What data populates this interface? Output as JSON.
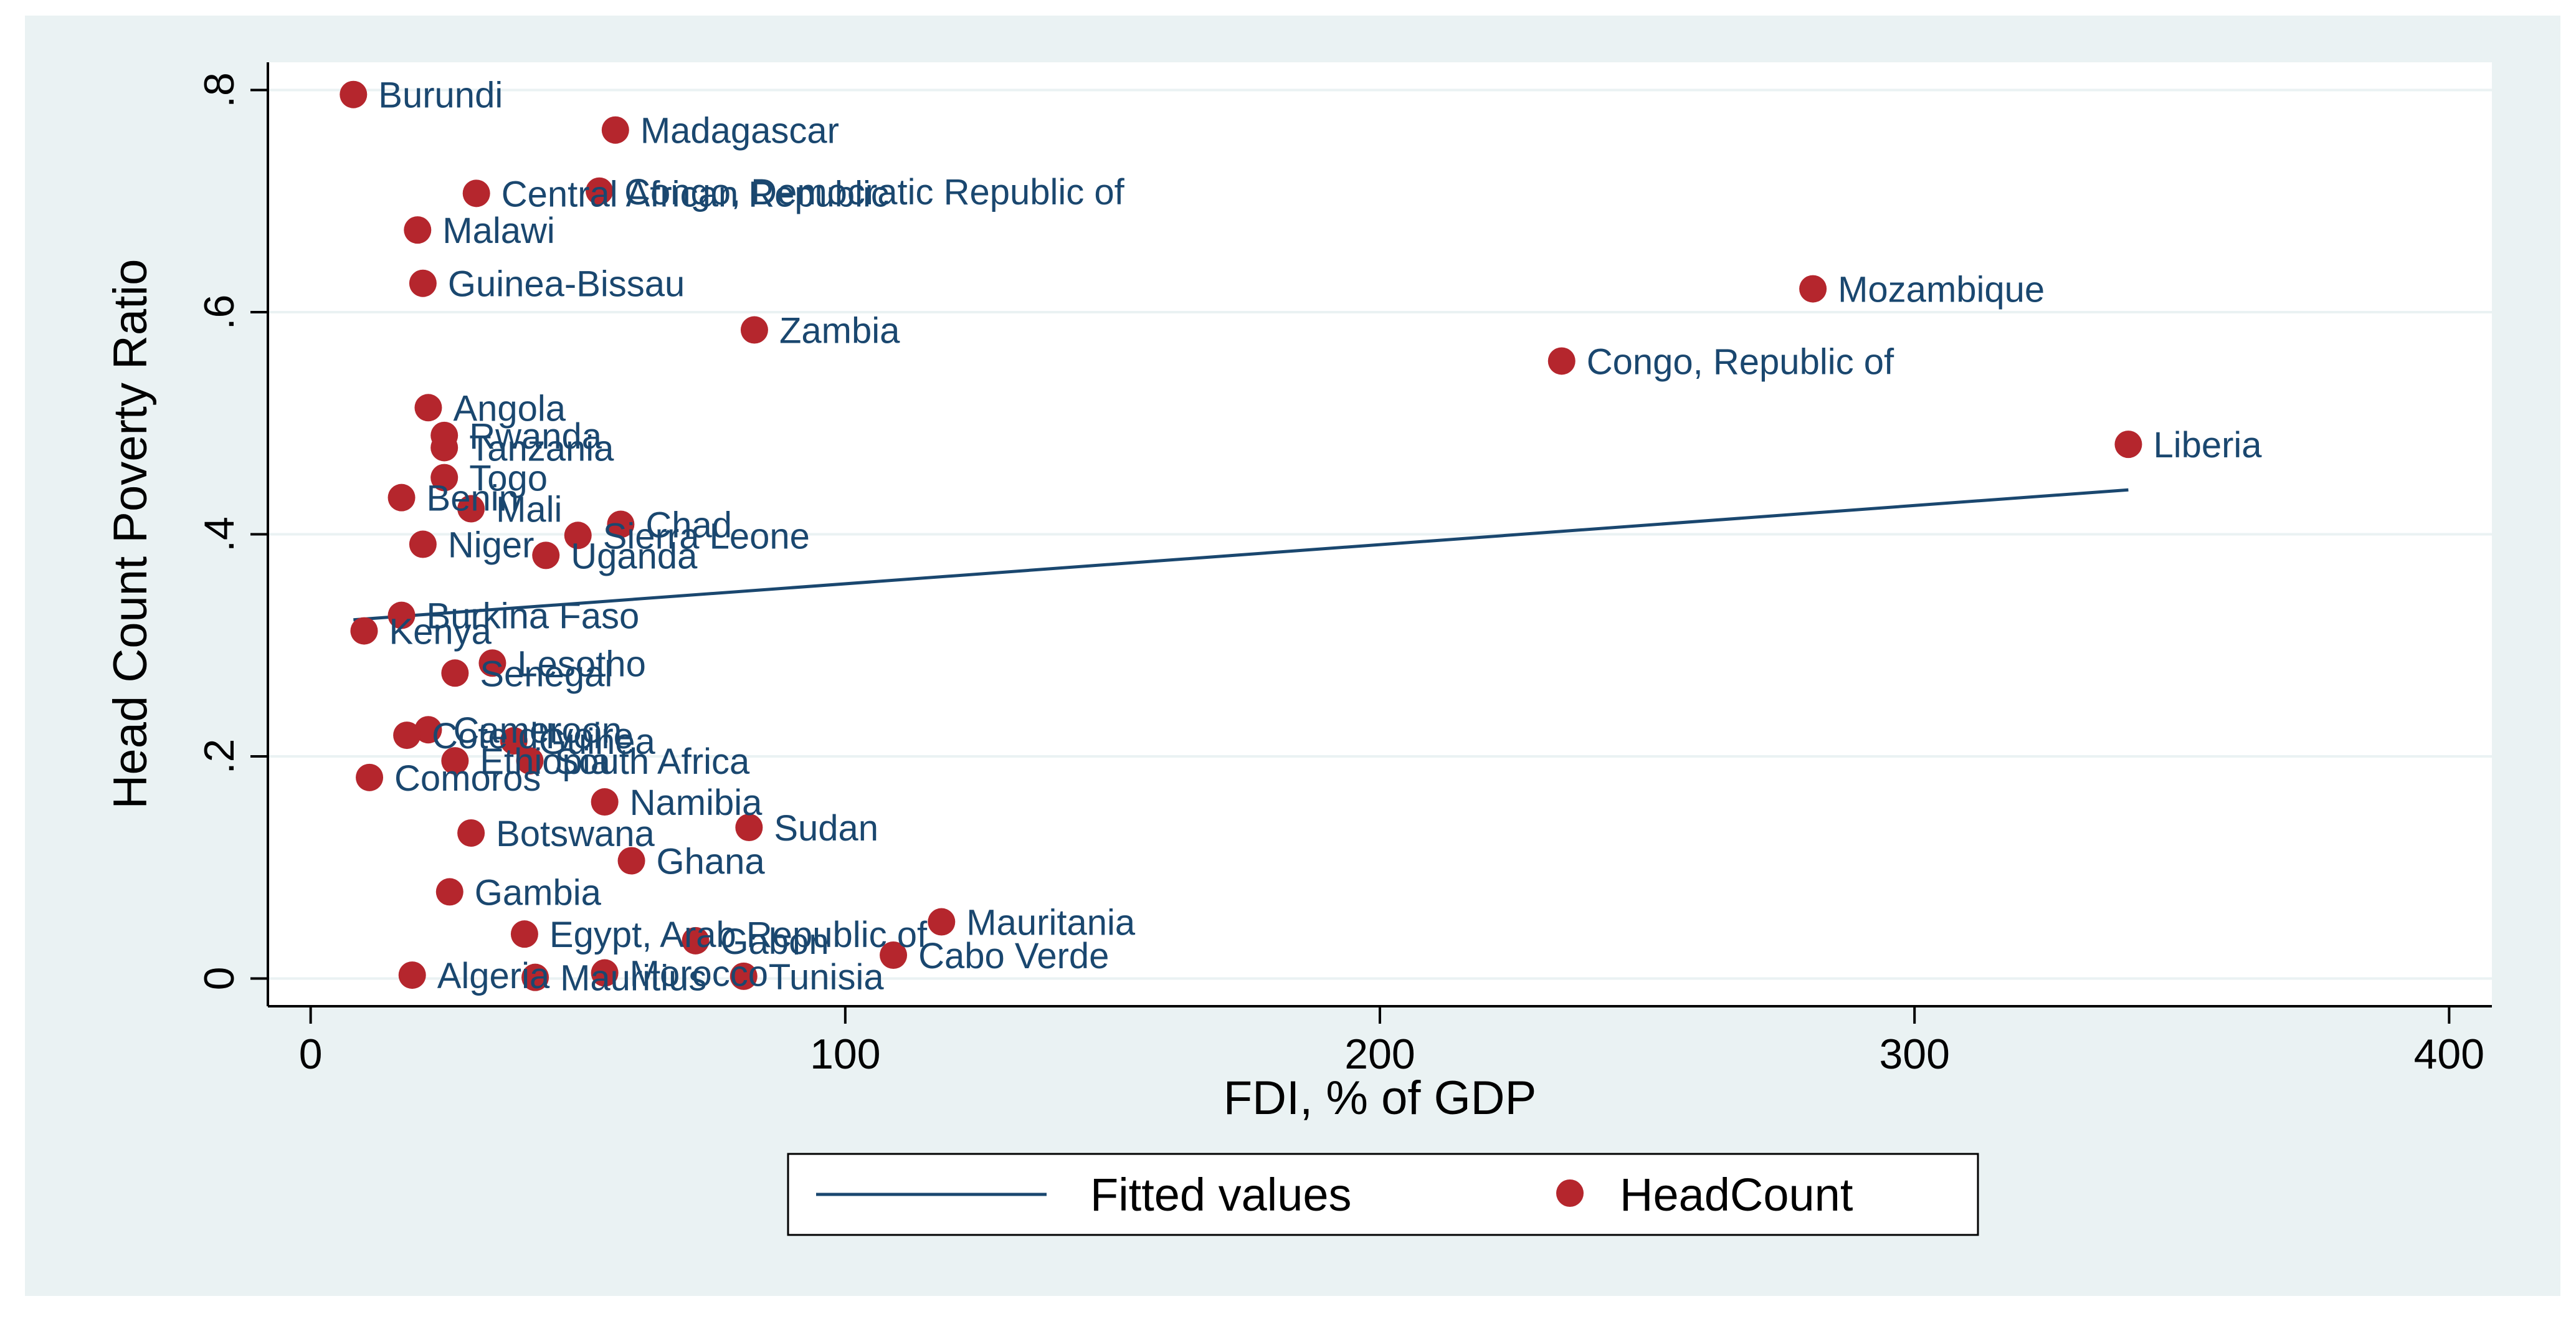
{
  "chart_data": {
    "type": "scatter",
    "title": "",
    "xlabel": "FDI, % of GDP",
    "ylabel": "Head Count Poverty Ratio",
    "xlim": [
      -8,
      408
    ],
    "ylim": [
      -0.025,
      0.825
    ],
    "x_ticks": [
      0,
      100,
      200,
      300,
      400
    ],
    "x_tick_labels": [
      "0",
      "100",
      "200",
      "300",
      "400"
    ],
    "y_ticks": [
      0,
      0.2,
      0.4,
      0.6,
      0.8
    ],
    "y_tick_labels": [
      "0",
      ".2",
      ".4",
      ".6",
      ".8"
    ],
    "grid": "horizontal",
    "legend": [
      {
        "label": "Fitted values",
        "marker": "line"
      },
      {
        "label": "HeadCount",
        "marker": "dot"
      }
    ],
    "colors": {
      "marker": "#b5262d",
      "label": "#1a476f",
      "fit_line": "#1a476f",
      "grid": "#ffffff",
      "frame": "#eaf2f3",
      "plot_bg": "#ffffff"
    },
    "fitted_line": {
      "name": "Fitted values",
      "x": [
        8,
        340
      ],
      "y": [
        0.323,
        0.44
      ]
    },
    "series": [
      {
        "name": "HeadCount",
        "points": [
          {
            "label": "Burundi",
            "x": 8,
            "y": 0.796
          },
          {
            "label": "Madagascar",
            "x": 57,
            "y": 0.764
          },
          {
            "label": "Central African Republic",
            "x": 31,
            "y": 0.707
          },
          {
            "label": "Congo, Democratic Republic of",
            "x": 54,
            "y": 0.709
          },
          {
            "label": "Malawi",
            "x": 20,
            "y": 0.674
          },
          {
            "label": "Guinea-Bissau",
            "x": 21,
            "y": 0.626
          },
          {
            "label": "Mozambique",
            "x": 281,
            "y": 0.621
          },
          {
            "label": "Zambia",
            "x": 83,
            "y": 0.584
          },
          {
            "label": "Congo, Republic of",
            "x": 234,
            "y": 0.556
          },
          {
            "label": "Angola",
            "x": 22,
            "y": 0.514
          },
          {
            "label": "Rwanda",
            "x": 25,
            "y": 0.489
          },
          {
            "label": "Tanzania",
            "x": 25,
            "y": 0.478
          },
          {
            "label": "Liberia",
            "x": 340,
            "y": 0.481
          },
          {
            "label": "Togo",
            "x": 25,
            "y": 0.451
          },
          {
            "label": "Benin",
            "x": 17,
            "y": 0.433
          },
          {
            "label": "Mali",
            "x": 30,
            "y": 0.423
          },
          {
            "label": "Chad",
            "x": 58,
            "y": 0.409
          },
          {
            "label": "Sierra Leone",
            "x": 50,
            "y": 0.399
          },
          {
            "label": "Niger",
            "x": 21,
            "y": 0.391
          },
          {
            "label": "Uganda",
            "x": 44,
            "y": 0.381
          },
          {
            "label": "Burkina Faso",
            "x": 17,
            "y": 0.327
          },
          {
            "label": "Kenya",
            "x": 10,
            "y": 0.313
          },
          {
            "label": "Lesotho",
            "x": 34,
            "y": 0.284
          },
          {
            "label": "Senegal",
            "x": 27,
            "y": 0.275
          },
          {
            "label": "Cameroon",
            "x": 22,
            "y": 0.224
          },
          {
            "label": "Cote d'Ivoire",
            "x": 18,
            "y": 0.219
          },
          {
            "label": "Guinea",
            "x": 38,
            "y": 0.214
          },
          {
            "label": "Ethiopia",
            "x": 27,
            "y": 0.196
          },
          {
            "label": "South Africa",
            "x": 41,
            "y": 0.196
          },
          {
            "label": "Comoros",
            "x": 11,
            "y": 0.181
          },
          {
            "label": "Namibia",
            "x": 55,
            "y": 0.159
          },
          {
            "label": "Sudan",
            "x": 82,
            "y": 0.136
          },
          {
            "label": "Botswana",
            "x": 30,
            "y": 0.131
          },
          {
            "label": "Ghana",
            "x": 60,
            "y": 0.106
          },
          {
            "label": "Gambia",
            "x": 26,
            "y": 0.078
          },
          {
            "label": "Mauritania",
            "x": 118,
            "y": 0.051
          },
          {
            "label": "Egypt, Arab Republic of",
            "x": 40,
            "y": 0.04
          },
          {
            "label": "Gabon",
            "x": 72,
            "y": 0.034
          },
          {
            "label": "Cabo Verde",
            "x": 109,
            "y": 0.021
          },
          {
            "label": "Algeria",
            "x": 19,
            "y": 0.003
          },
          {
            "label": "Mauritius",
            "x": 42,
            "y": 0.001
          },
          {
            "label": "Morocco",
            "x": 55,
            "y": 0.005
          },
          {
            "label": "Tunisia",
            "x": 81,
            "y": 0.002
          }
        ]
      }
    ]
  }
}
